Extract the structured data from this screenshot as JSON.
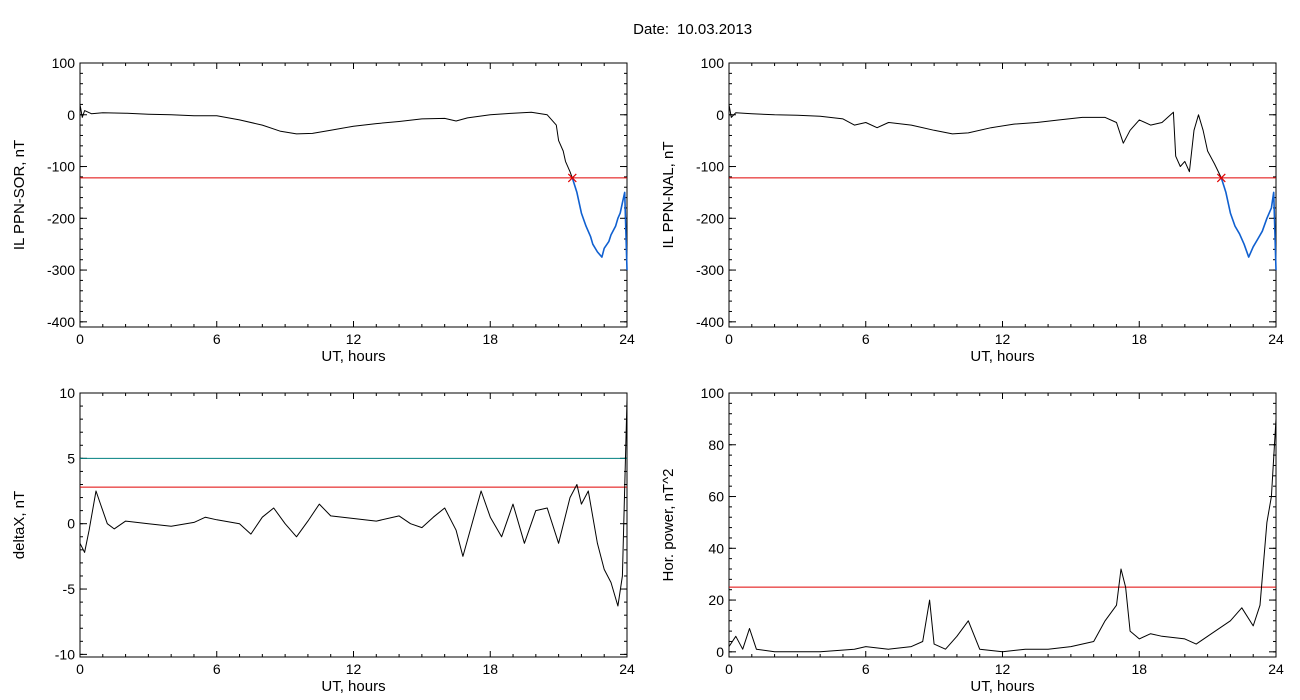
{
  "header": {
    "date_label": "Date:",
    "date_value": "10.03.2013"
  },
  "colors": {
    "trace": "#000000",
    "threshold": "#e00000",
    "upper_threshold": "#008080",
    "highlight": "#1060d0",
    "marker": "#e00000"
  },
  "chart_data": [
    {
      "type": "line",
      "ylabel": "IL PPN-SOR, nT",
      "xlabel": "UT, hours",
      "xlim": [
        0,
        24
      ],
      "ylim": [
        -410,
        100
      ],
      "xticks": [
        0,
        6,
        12,
        18,
        24
      ],
      "yticks": [
        100,
        0,
        -100,
        -200,
        -300,
        -400
      ],
      "threshold": -122,
      "marker": {
        "x": 21.6,
        "y": -122
      },
      "series": [
        {
          "color": "black",
          "points": [
            [
              0,
              20
            ],
            [
              0.1,
              -5
            ],
            [
              0.2,
              8
            ],
            [
              0.5,
              2
            ],
            [
              1,
              4
            ],
            [
              2,
              3
            ],
            [
              3,
              1
            ],
            [
              4,
              0
            ],
            [
              5,
              -2
            ],
            [
              6,
              -2
            ],
            [
              7,
              -10
            ],
            [
              8,
              -20
            ],
            [
              8.8,
              -32
            ],
            [
              9.5,
              -37
            ],
            [
              10.2,
              -36
            ],
            [
              11,
              -30
            ],
            [
              12,
              -22
            ],
            [
              13,
              -17
            ],
            [
              14,
              -13
            ],
            [
              15,
              -8
            ],
            [
              16,
              -7
            ],
            [
              16.5,
              -12
            ],
            [
              17,
              -6
            ],
            [
              18,
              0
            ],
            [
              19,
              3
            ],
            [
              19.8,
              5
            ],
            [
              20.5,
              0
            ],
            [
              20.9,
              -20
            ],
            [
              21,
              -50
            ],
            [
              21.2,
              -70
            ],
            [
              21.3,
              -90
            ],
            [
              21.5,
              -110
            ],
            [
              21.6,
              -122
            ]
          ]
        },
        {
          "color": "blue",
          "points": [
            [
              21.6,
              -122
            ],
            [
              21.8,
              -150
            ],
            [
              22,
              -190
            ],
            [
              22.2,
              -215
            ],
            [
              22.4,
              -235
            ],
            [
              22.5,
              -250
            ],
            [
              22.7,
              -265
            ],
            [
              22.9,
              -275
            ],
            [
              23,
              -258
            ],
            [
              23.2,
              -245
            ],
            [
              23.3,
              -232
            ],
            [
              23.5,
              -215
            ],
            [
              23.6,
              -200
            ],
            [
              23.7,
              -190
            ],
            [
              23.8,
              -170
            ],
            [
              23.9,
              -150
            ],
            [
              24,
              -300
            ]
          ]
        }
      ]
    },
    {
      "type": "line",
      "ylabel": "IL PPN-NAL, nT",
      "xlabel": "UT, hours",
      "xlim": [
        0,
        24
      ],
      "ylim": [
        -410,
        100
      ],
      "xticks": [
        0,
        6,
        12,
        18,
        24
      ],
      "yticks": [
        100,
        0,
        -100,
        -200,
        -300,
        -400
      ],
      "threshold": -122,
      "marker": {
        "x": 21.6,
        "y": -122
      },
      "series": [
        {
          "color": "black",
          "points": [
            [
              0,
              20
            ],
            [
              0.1,
              -5
            ],
            [
              0.3,
              4
            ],
            [
              1,
              2
            ],
            [
              2,
              0
            ],
            [
              3,
              -1
            ],
            [
              4,
              -3
            ],
            [
              5,
              -8
            ],
            [
              5.5,
              -20
            ],
            [
              6,
              -15
            ],
            [
              6.5,
              -25
            ],
            [
              7,
              -15
            ],
            [
              8,
              -20
            ],
            [
              9,
              -30
            ],
            [
              9.8,
              -37
            ],
            [
              10.5,
              -35
            ],
            [
              11.5,
              -25
            ],
            [
              12.5,
              -18
            ],
            [
              13.5,
              -15
            ],
            [
              14.5,
              -10
            ],
            [
              15.5,
              -5
            ],
            [
              16.5,
              -5
            ],
            [
              17,
              -15
            ],
            [
              17.3,
              -55
            ],
            [
              17.6,
              -30
            ],
            [
              18,
              -10
            ],
            [
              18.5,
              -20
            ],
            [
              19,
              -15
            ],
            [
              19.5,
              5
            ],
            [
              19.6,
              -80
            ],
            [
              19.8,
              -100
            ],
            [
              20,
              -90
            ],
            [
              20.2,
              -110
            ],
            [
              20.4,
              -30
            ],
            [
              20.6,
              0
            ],
            [
              20.8,
              -30
            ],
            [
              21,
              -70
            ],
            [
              21.3,
              -95
            ],
            [
              21.6,
              -122
            ]
          ]
        },
        {
          "color": "blue",
          "points": [
            [
              21.6,
              -122
            ],
            [
              21.8,
              -150
            ],
            [
              22,
              -190
            ],
            [
              22.2,
              -215
            ],
            [
              22.4,
              -230
            ],
            [
              22.6,
              -250
            ],
            [
              22.8,
              -275
            ],
            [
              23,
              -255
            ],
            [
              23.2,
              -240
            ],
            [
              23.4,
              -225
            ],
            [
              23.6,
              -200
            ],
            [
              23.8,
              -180
            ],
            [
              23.9,
              -150
            ],
            [
              24,
              -300
            ]
          ]
        }
      ]
    },
    {
      "type": "line",
      "ylabel": "deltaX, nT",
      "xlabel": "UT, hours",
      "xlim": [
        0,
        24
      ],
      "ylim": [
        -10.2,
        10
      ],
      "xticks": [
        0,
        6,
        12,
        18,
        24
      ],
      "yticks": [
        10,
        5,
        0,
        -5,
        -10
      ],
      "threshold": 2.8,
      "upper_threshold": 5,
      "series": [
        {
          "color": "black",
          "points": [
            [
              0,
              -1.5
            ],
            [
              0.2,
              -2.2
            ],
            [
              0.4,
              -0.5
            ],
            [
              0.7,
              2.5
            ],
            [
              0.9,
              1.5
            ],
            [
              1.2,
              0
            ],
            [
              1.5,
              -0.4
            ],
            [
              2,
              0.2
            ],
            [
              3,
              0
            ],
            [
              4,
              -0.2
            ],
            [
              5,
              0.1
            ],
            [
              5.5,
              0.5
            ],
            [
              6,
              0.3
            ],
            [
              7,
              0
            ],
            [
              7.5,
              -0.8
            ],
            [
              8,
              0.5
            ],
            [
              8.5,
              1.2
            ],
            [
              9,
              0
            ],
            [
              9.5,
              -1
            ],
            [
              10,
              0.2
            ],
            [
              10.5,
              1.5
            ],
            [
              11,
              0.6
            ],
            [
              12,
              0.4
            ],
            [
              13,
              0.2
            ],
            [
              14,
              0.6
            ],
            [
              14.5,
              0
            ],
            [
              15,
              -0.3
            ],
            [
              15.5,
              0.5
            ],
            [
              16,
              1.2
            ],
            [
              16.5,
              -0.5
            ],
            [
              16.8,
              -2.5
            ],
            [
              17.2,
              0
            ],
            [
              17.6,
              2.5
            ],
            [
              18,
              0.5
            ],
            [
              18.5,
              -1
            ],
            [
              19,
              1.5
            ],
            [
              19.5,
              -1.5
            ],
            [
              20,
              1
            ],
            [
              20.5,
              1.2
            ],
            [
              21,
              -1.5
            ],
            [
              21.5,
              2
            ],
            [
              21.8,
              3
            ],
            [
              22,
              1.5
            ],
            [
              22.3,
              2.5
            ],
            [
              22.7,
              -1.5
            ],
            [
              23,
              -3.5
            ],
            [
              23.3,
              -4.5
            ],
            [
              23.6,
              -6.3
            ],
            [
              23.8,
              -4
            ],
            [
              24,
              9.5
            ]
          ]
        }
      ]
    },
    {
      "type": "line",
      "ylabel": "Hor. power, nT^2",
      "xlabel": "UT, hours",
      "xlim": [
        0,
        24
      ],
      "ylim": [
        -2,
        100
      ],
      "xticks": [
        0,
        6,
        12,
        18,
        24
      ],
      "yticks": [
        100,
        80,
        60,
        40,
        20,
        0
      ],
      "threshold": 25,
      "series": [
        {
          "color": "black",
          "points": [
            [
              0,
              2
            ],
            [
              0.3,
              6
            ],
            [
              0.6,
              1
            ],
            [
              0.9,
              9
            ],
            [
              1.2,
              1
            ],
            [
              2,
              0
            ],
            [
              4,
              0
            ],
            [
              5.5,
              1
            ],
            [
              6,
              2
            ],
            [
              7,
              1
            ],
            [
              8,
              2
            ],
            [
              8.5,
              4
            ],
            [
              8.8,
              20
            ],
            [
              9,
              3
            ],
            [
              9.5,
              1
            ],
            [
              10,
              6
            ],
            [
              10.5,
              12
            ],
            [
              11,
              1
            ],
            [
              12,
              0
            ],
            [
              13,
              1
            ],
            [
              14,
              1
            ],
            [
              15,
              2
            ],
            [
              16,
              4
            ],
            [
              16.5,
              12
            ],
            [
              17,
              18
            ],
            [
              17.2,
              32
            ],
            [
              17.4,
              25
            ],
            [
              17.6,
              8
            ],
            [
              18,
              5
            ],
            [
              18.5,
              7
            ],
            [
              19,
              6
            ],
            [
              20,
              5
            ],
            [
              20.5,
              3
            ],
            [
              21,
              6
            ],
            [
              22,
              12
            ],
            [
              22.5,
              17
            ],
            [
              23,
              10
            ],
            [
              23.3,
              18
            ],
            [
              23.6,
              50
            ],
            [
              23.8,
              60
            ],
            [
              24,
              90
            ]
          ]
        }
      ]
    }
  ]
}
